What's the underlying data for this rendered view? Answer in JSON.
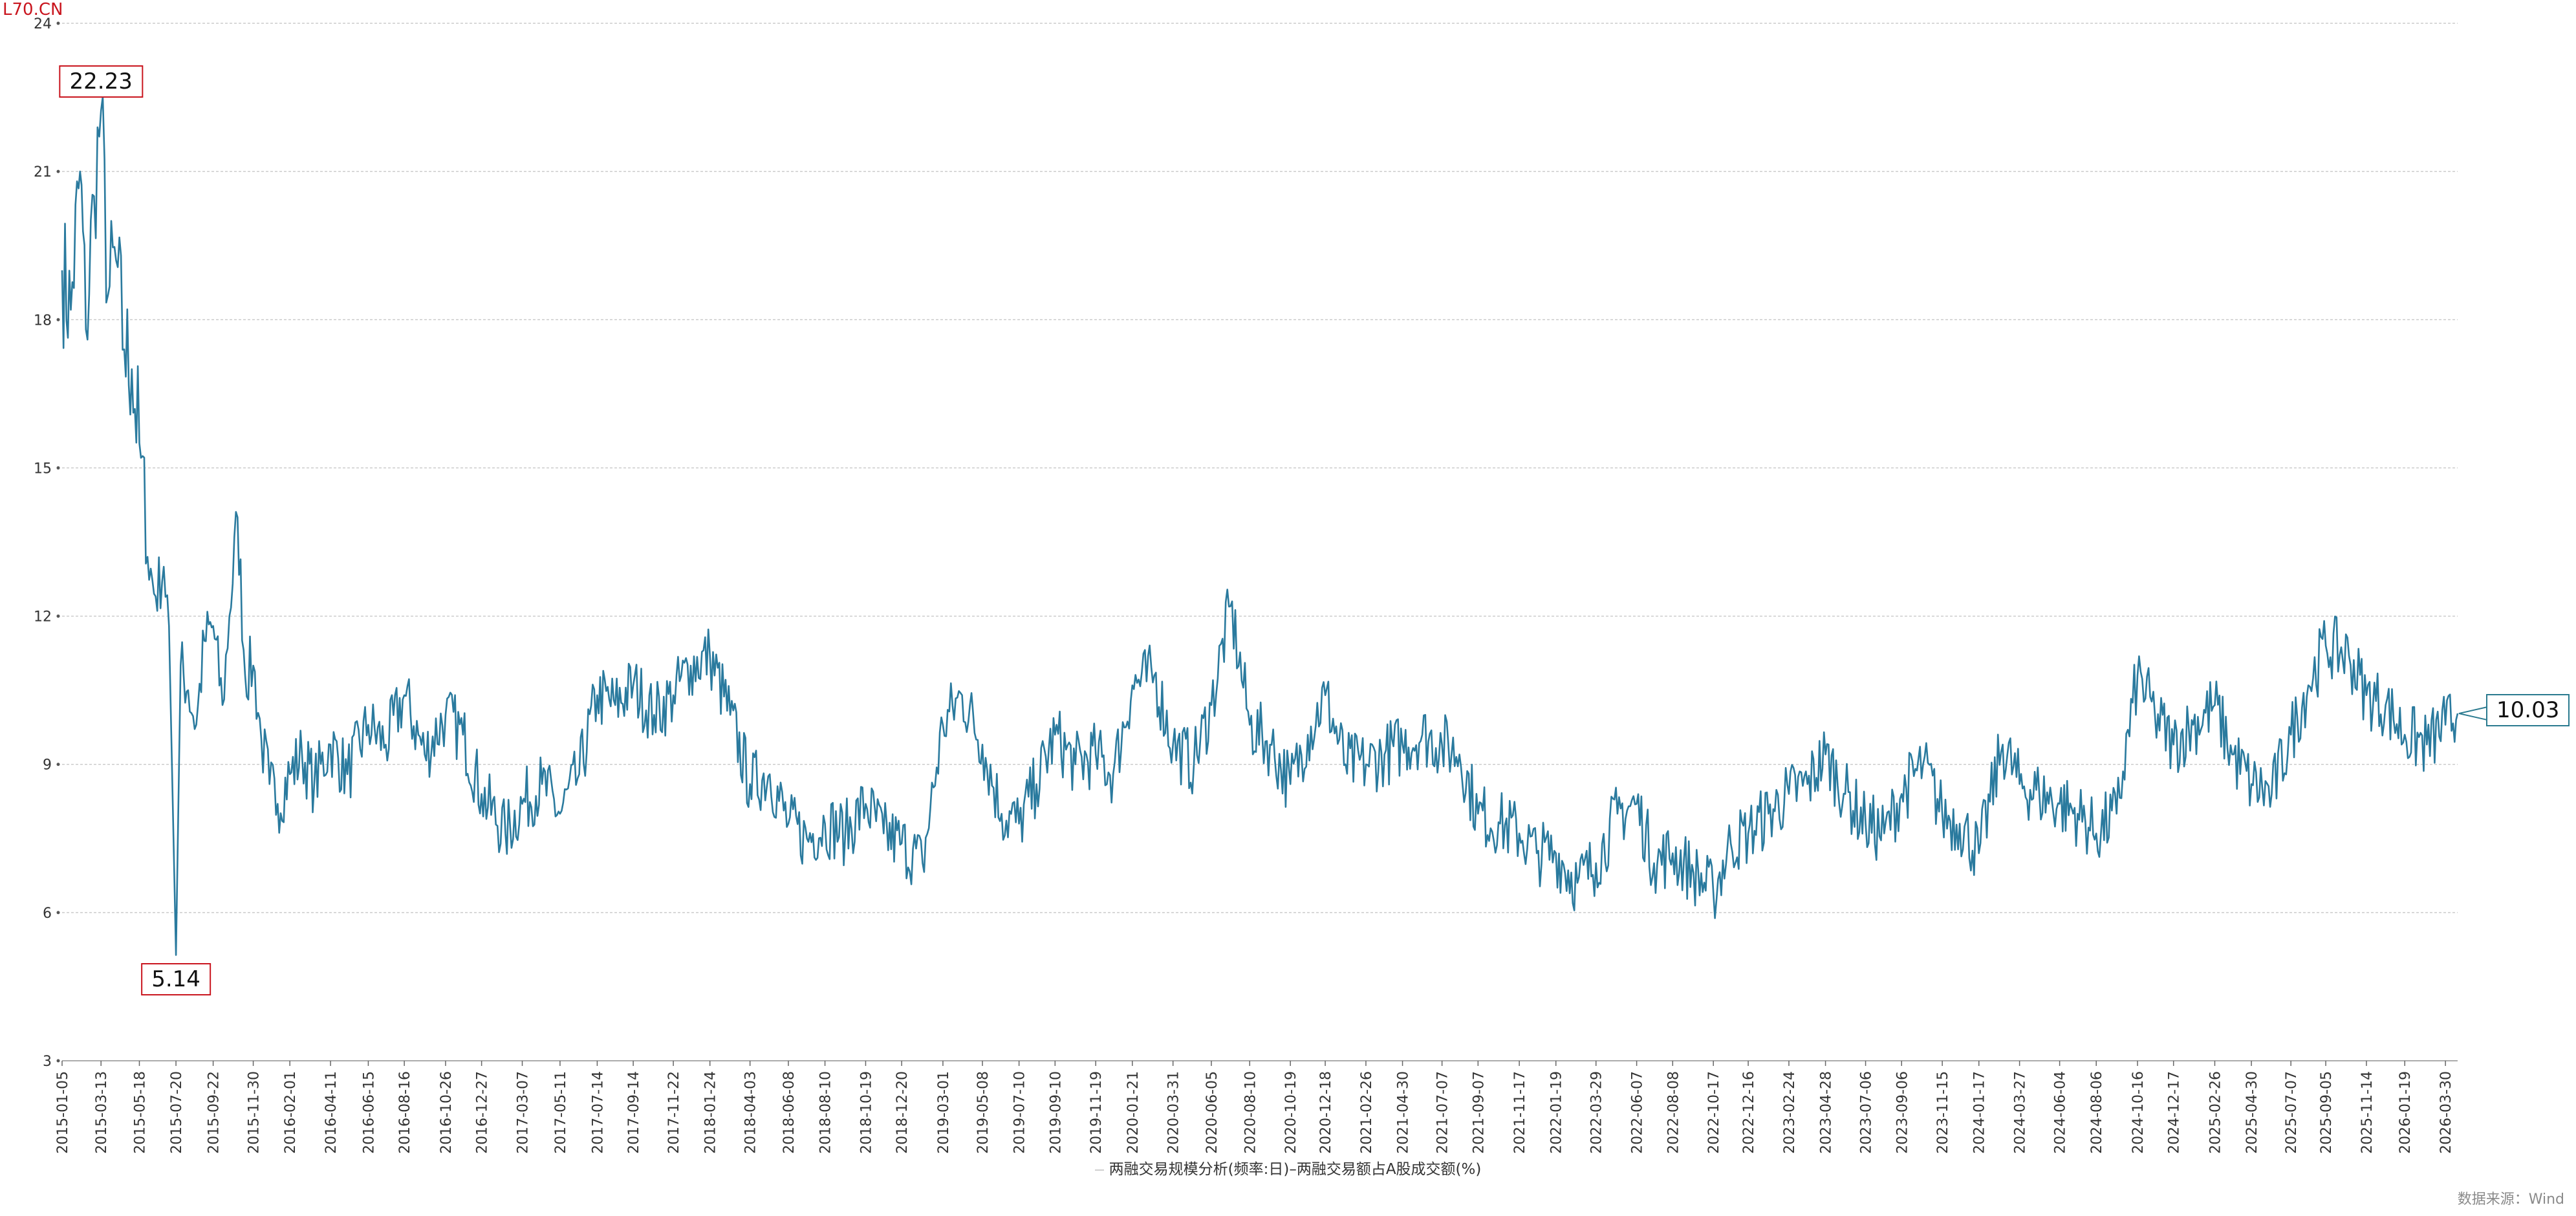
{
  "header": {
    "code": "L70.CN"
  },
  "footer": {
    "source": "数据来源：Wind"
  },
  "legend": {
    "label": "两融交易规模分析(频率:日)–两融交易额占A股成交额(%)"
  },
  "colors": {
    "line": "#2a7a9e",
    "max_marker": "#c9151e",
    "last_marker": "#2a7a8f",
    "grid": "#cccccc"
  },
  "chart_data": {
    "type": "line",
    "title": "",
    "xlabel": "",
    "ylabel": "",
    "ylim": [
      3,
      24
    ],
    "yticks": [
      3,
      6,
      9,
      12,
      15,
      18,
      21,
      24
    ],
    "grid": true,
    "legend_position": "bottom",
    "xticks": [
      "2015-01-05",
      "2015-03-13",
      "2015-05-18",
      "2015-07-20",
      "2015-09-22",
      "2015-11-30",
      "2016-02-01",
      "2016-04-11",
      "2016-06-15",
      "2016-08-16",
      "2016-10-26",
      "2016-12-27",
      "2017-03-07",
      "2017-05-11",
      "2017-07-14",
      "2017-09-14",
      "2017-11-22",
      "2018-01-24",
      "2018-04-03",
      "2018-06-08",
      "2018-08-10",
      "2018-10-19",
      "2018-12-20",
      "2019-03-01",
      "2019-05-08",
      "2019-07-10",
      "2019-09-10",
      "2019-11-19",
      "2020-01-21",
      "2020-03-31",
      "2020-06-05",
      "2020-08-10",
      "2020-10-19",
      "2020-12-18",
      "2021-02-26",
      "2021-04-30",
      "2021-07-07",
      "2021-09-07",
      "2021-11-17",
      "2022-01-19",
      "2022-03-29",
      "2022-06-07",
      "2022-08-08",
      "2022-10-17",
      "2022-12-16",
      "2023-02-24",
      "2023-04-28",
      "2023-07-06",
      "2023-09-06",
      "2023-11-15",
      "2024-01-17",
      "2024-03-27",
      "2024-06-04",
      "2024-08-06",
      "2024-10-16",
      "2024-12-17",
      "2025-02-26",
      "2025-04-30",
      "2025-07-07",
      "2025-09-05",
      "2025-11-14",
      "2026-01-19",
      "2026-03-30"
    ],
    "series": [
      {
        "name": "两融交易规模分析(频率:日)–两融交易额占A股成交额(%)",
        "x": [
          "2015-01-05",
          "2015-01-20",
          "2015-02-05",
          "2015-02-15",
          "2015-03-01",
          "2015-03-13",
          "2015-03-25",
          "2015-04-08",
          "2015-04-22",
          "2015-05-05",
          "2015-05-18",
          "2015-06-01",
          "2015-06-15",
          "2015-06-29",
          "2015-07-08",
          "2015-07-20",
          "2015-07-28",
          "2015-08-10",
          "2015-08-24",
          "2015-09-07",
          "2015-09-22",
          "2015-10-08",
          "2015-10-20",
          "2015-11-03",
          "2015-11-16",
          "2015-11-30",
          "2015-12-14",
          "2015-12-28",
          "2016-01-11",
          "2016-02-01",
          "2016-02-22",
          "2016-03-14",
          "2016-04-11",
          "2016-05-10",
          "2016-06-15",
          "2016-07-15",
          "2016-08-16",
          "2016-09-20",
          "2016-10-26",
          "2016-11-25",
          "2016-12-27",
          "2017-02-06",
          "2017-03-07",
          "2017-04-10",
          "2017-05-11",
          "2017-06-13",
          "2017-07-14",
          "2017-08-14",
          "2017-09-14",
          "2017-10-20",
          "2017-11-22",
          "2017-12-22",
          "2018-01-24",
          "2018-02-28",
          "2018-04-03",
          "2018-05-07",
          "2018-06-08",
          "2018-07-10",
          "2018-08-10",
          "2018-09-14",
          "2018-10-19",
          "2018-11-19",
          "2018-12-20",
          "2019-01-25",
          "2019-03-01",
          "2019-04-03",
          "2019-05-08",
          "2019-06-10",
          "2019-07-10",
          "2019-08-09",
          "2019-09-10",
          "2019-10-15",
          "2019-11-19",
          "2019-12-19",
          "2020-01-21",
          "2020-02-28",
          "2020-03-31",
          "2020-05-06",
          "2020-06-05",
          "2020-07-08",
          "2020-08-10",
          "2020-09-14",
          "2020-10-19",
          "2020-11-18",
          "2020-12-18",
          "2021-01-22",
          "2021-02-26",
          "2021-03-30",
          "2021-04-30",
          "2021-06-03",
          "2021-07-07",
          "2021-08-06",
          "2021-09-07",
          "2021-10-15",
          "2021-11-17",
          "2021-12-17",
          "2022-01-19",
          "2022-02-25",
          "2022-03-29",
          "2022-05-05",
          "2022-06-07",
          "2022-07-07",
          "2022-08-08",
          "2022-09-13",
          "2022-10-17",
          "2022-11-16",
          "2022-12-16",
          "2023-01-20",
          "2023-02-24",
          "2023-03-28",
          "2023-04-28",
          "2023-06-01",
          "2023-07-06",
          "2023-08-07",
          "2023-09-06",
          "2023-10-13",
          "2023-11-15",
          "2023-12-15",
          "2024-01-17",
          "2024-02-27",
          "2024-03-27",
          "2024-04-30",
          "2024-06-04",
          "2024-07-05",
          "2024-08-06",
          "2024-09-10",
          "2024-10-16",
          "2024-11-15",
          "2024-12-17",
          "2025-01-20",
          "2025-02-26",
          "2025-03-28",
          "2025-04-30",
          "2025-06-04",
          "2025-07-07",
          "2025-08-06",
          "2025-09-05",
          "2025-10-15",
          "2025-11-14",
          "2025-12-17",
          "2026-01-19",
          "2026-02-26",
          "2026-03-30",
          "2026-04-20"
        ],
        "values": [
          19.0,
          18.2,
          21.0,
          17.8,
          20.5,
          22.23,
          18.5,
          19.2,
          17.4,
          17.0,
          15.5,
          13.2,
          12.4,
          13.0,
          11.8,
          5.14,
          11.0,
          10.5,
          9.8,
          11.5,
          11.8,
          10.2,
          12.0,
          14.0,
          10.8,
          11.0,
          9.5,
          8.6,
          8.2,
          8.8,
          9.2,
          8.6,
          9.4,
          8.8,
          9.8,
          9.4,
          10.4,
          9.2,
          10.0,
          9.6,
          8.4,
          7.6,
          8.2,
          8.6,
          8.0,
          8.8,
          10.4,
          10.2,
          10.6,
          10.0,
          10.4,
          11.0,
          11.2,
          10.0,
          8.6,
          8.8,
          7.8,
          7.5,
          7.8,
          7.6,
          8.2,
          7.6,
          7.4,
          7.0,
          9.8,
          10.4,
          9.4,
          8.0,
          7.8,
          8.6,
          9.6,
          9.0,
          9.2,
          8.8,
          10.6,
          10.8,
          9.4,
          9.0,
          10.2,
          12.2,
          9.8,
          9.4,
          8.6,
          9.6,
          10.4,
          9.0,
          9.0,
          9.2,
          9.4,
          9.6,
          9.4,
          9.2,
          8.0,
          7.8,
          7.6,
          7.2,
          7.2,
          6.6,
          7.0,
          8.0,
          8.2,
          7.0,
          7.2,
          6.8,
          6.4,
          7.4,
          7.6,
          8.0,
          8.4,
          8.6,
          9.2,
          8.4,
          7.8,
          7.6,
          8.4,
          9.0,
          8.0,
          7.8,
          7.2,
          9.4,
          8.6,
          8.4,
          8.2,
          8.0,
          7.6,
          8.0,
          10.8,
          10.0,
          9.4,
          9.8,
          10.2,
          9.2,
          8.6,
          8.4,
          9.6,
          10.6,
          11.4,
          11.2,
          10.4,
          10.2,
          9.6,
          9.4,
          9.8,
          10.03
        ]
      }
    ],
    "annotations": [
      {
        "label": "22.23",
        "x": "2015-03-13",
        "y": 22.23,
        "type": "max"
      },
      {
        "label": "5.14",
        "x": "2015-07-20",
        "y": 5.14,
        "type": "min"
      },
      {
        "label": "10.03",
        "x": "2026-04-20",
        "y": 10.03,
        "type": "last"
      }
    ]
  }
}
